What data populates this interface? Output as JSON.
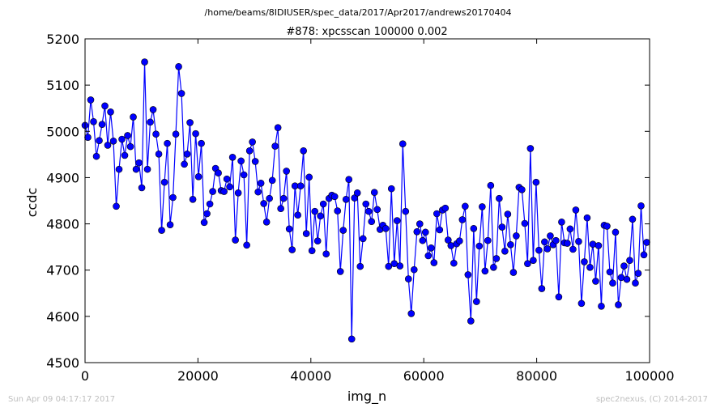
{
  "page": {
    "suptitle": "/home/beams/8IDIUSER/spec_data/2017/Apr2017/andrews20170404",
    "footer_left": "Sun Apr 09 04:17:17 2017",
    "footer_right": "spec2nexus, (C) 2014-2017"
  },
  "chart_data": {
    "type": "line",
    "title": "#878: xpcsscan 100000 0.002",
    "xlabel": "img_n",
    "ylabel": "ccdc",
    "xlim": [
      0,
      100000
    ],
    "ylim": [
      4500,
      5200
    ],
    "xticks": [
      0,
      20000,
      40000,
      60000,
      80000,
      100000
    ],
    "yticks": [
      4500,
      4600,
      4700,
      4800,
      4900,
      5000,
      5100,
      5200
    ],
    "marker": "circle",
    "color": "#0000ff",
    "grid": false,
    "series": [
      {
        "x_start": 0,
        "x_step": 502.5,
        "values": [
          5013,
          4987,
          5068,
          5021,
          4946,
          4980,
          5015,
          5055,
          4970,
          5042,
          4979,
          4838,
          4918,
          4983,
          4948,
          4991,
          4967,
          5031,
          4918,
          4932,
          4878,
          5150,
          4918,
          5020,
          5047,
          4994,
          4951,
          4786,
          4890,
          4974,
          4798,
          4857,
          4994,
          5140,
          5082,
          4929,
          4951,
          5019,
          4853,
          4995,
          4902,
          4974,
          4803,
          4822,
          4843,
          4870,
          4920,
          4910,
          4872,
          4870,
          4897,
          4880,
          4944,
          4765,
          4867,
          4936,
          4906,
          4754,
          4958,
          4977,
          4935,
          4869,
          4888,
          4844,
          4804,
          4855,
          4894,
          4968,
          5008,
          4833,
          4855,
          4914,
          4789,
          4744,
          4882,
          4819,
          4882,
          4958,
          4779,
          4901,
          4742,
          4827,
          4763,
          4817,
          4843,
          4735,
          4855,
          4862,
          4859,
          4828,
          4697,
          4786,
          4853,
          4896,
          4551,
          4856,
          4867,
          4708,
          4768,
          4843,
          4827,
          4805,
          4868,
          4831,
          4788,
          4797,
          4790,
          4708,
          4876,
          4714,
          4807,
          4709,
          4973,
          4827,
          4681,
          4606,
          4701,
          4783,
          4800,
          4764,
          4782,
          4731,
          4748,
          4716,
          4822,
          4787,
          4830,
          4834,
          4765,
          4753,
          4715,
          4757,
          4763,
          4809,
          4838,
          4690,
          4590,
          4790,
          4632,
          4752,
          4837,
          4698,
          4764,
          4883,
          4706,
          4725,
          4855,
          4793,
          4741,
          4821,
          4755,
          4695,
          4774,
          4879,
          4874,
          4801,
          4714,
          4963,
          4721,
          4890,
          4743,
          4660,
          4761,
          4746,
          4774,
          4755,
          4764,
          4642,
          4804,
          4759,
          4758,
          4789,
          4745,
          4830,
          4762,
          4628,
          4718,
          4813,
          4706,
          4756,
          4676,
          4753,
          4622,
          4797,
          4795,
          4696,
          4672,
          4782,
          4625,
          4684,
          4709,
          4680,
          4721,
          4810,
          4672,
          4693,
          4839,
          4733,
          4760
        ]
      }
    ]
  }
}
